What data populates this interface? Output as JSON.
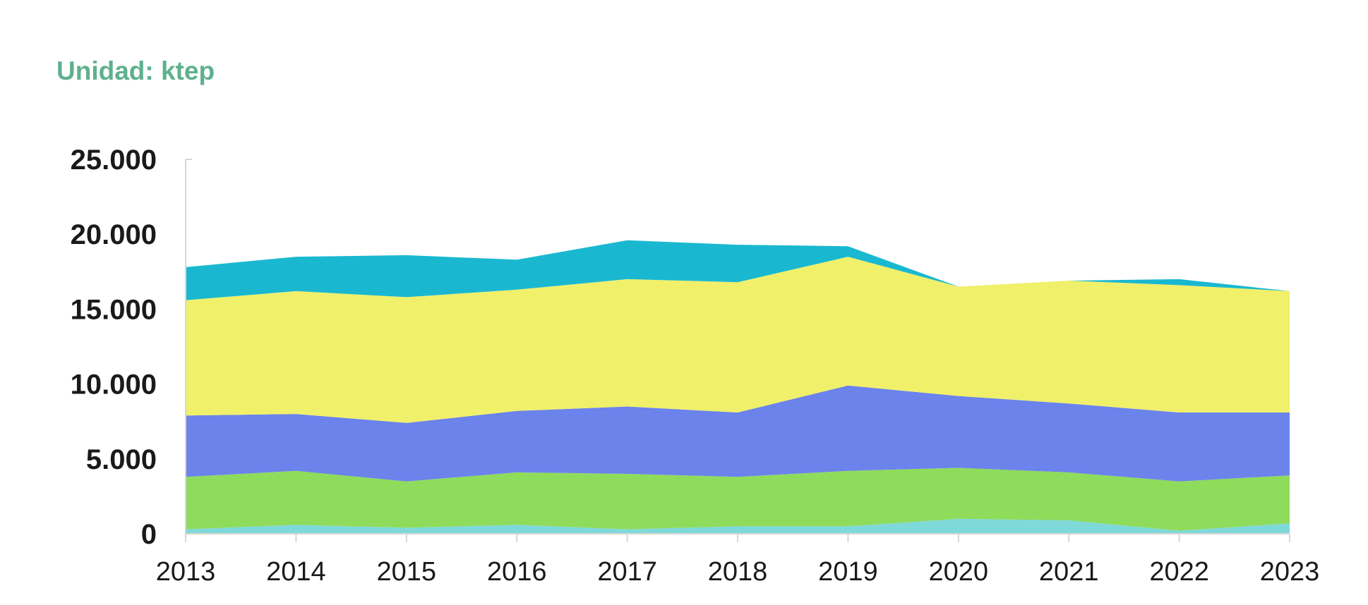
{
  "unit_label": "Unidad: ktep",
  "chart_data": {
    "type": "area",
    "stacked": true,
    "x": [
      2013,
      2014,
      2015,
      2016,
      2017,
      2018,
      2019,
      2020,
      2021,
      2022,
      2023
    ],
    "ylim": [
      0,
      25000
    ],
    "yticks": [
      0,
      5000,
      10000,
      15000,
      20000,
      25000
    ],
    "ytick_labels": [
      "0",
      "5.000",
      "10.000",
      "15.000",
      "20.000",
      "25.000"
    ],
    "xtick_labels": [
      "2013",
      "2014",
      "2015",
      "2016",
      "2017",
      "2018",
      "2019",
      "2020",
      "2021",
      "2022",
      "2023"
    ],
    "legend": false,
    "grid": false,
    "series": [
      {
        "color": "#7fd9d9",
        "values": [
          300,
          600,
          400,
          600,
          300,
          500,
          500,
          1000,
          900,
          200,
          700
        ]
      },
      {
        "color": "#8fdb5c",
        "values": [
          3500,
          3600,
          3100,
          3500,
          3700,
          3300,
          3700,
          3400,
          3200,
          3300,
          3200
        ]
      },
      {
        "color": "#6b83ea",
        "values": [
          4100,
          3800,
          3900,
          4100,
          4500,
          4300,
          5700,
          4800,
          4600,
          4600,
          4200
        ]
      },
      {
        "color": "#f0f06b",
        "values": [
          7700,
          8200,
          8400,
          8100,
          8500,
          8700,
          8600,
          7300,
          8200,
          8500,
          8100
        ]
      },
      {
        "color": "#1ab8d0",
        "values": [
          2200,
          2300,
          2800,
          2000,
          2600,
          2500,
          700,
          0,
          0,
          400,
          0
        ]
      }
    ]
  }
}
